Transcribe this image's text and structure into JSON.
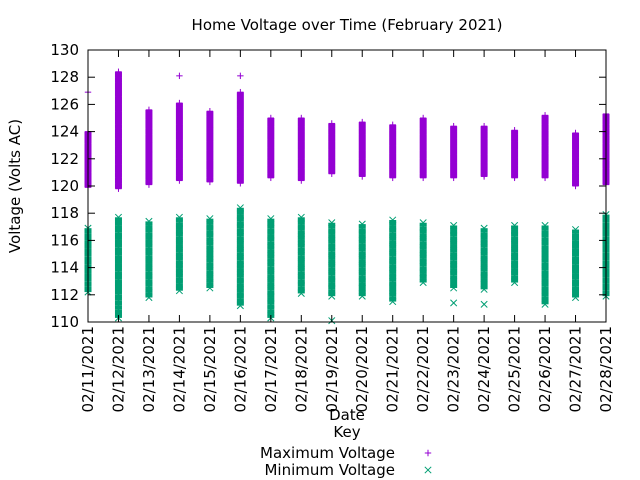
{
  "chart_data": {
    "type": "scatter",
    "title": "Home Voltage over Time (February 2021)",
    "xlabel": "Date",
    "ylabel": "Voltage (Volts AC)",
    "ylim": [
      110,
      130
    ],
    "yticks": [
      110,
      112,
      114,
      116,
      118,
      120,
      122,
      124,
      126,
      128,
      130
    ],
    "x": [
      "02/11/2021",
      "02/12/2021",
      "02/13/2021",
      "02/14/2021",
      "02/15/2021",
      "02/16/2021",
      "02/17/2021",
      "02/18/2021",
      "02/19/2021",
      "02/20/2021",
      "02/21/2021",
      "02/22/2021",
      "02/23/2021",
      "02/24/2021",
      "02/25/2021",
      "02/26/2021",
      "02/27/2021",
      "02/28/2021"
    ],
    "legend_title": "Key",
    "legend_position": "bottom-center",
    "grid": false,
    "series": [
      {
        "name": "Maximum Voltage",
        "marker": "plus",
        "color": "#9400d3",
        "values": [
          {
            "x": "02/11/2021",
            "y": [
              126.9,
              124.0,
              123.1,
              122.5,
              121.8,
              121.0,
              120.4,
              119.9
            ]
          },
          {
            "x": "02/12/2021",
            "y": [
              128.4,
              128.0,
              127.6,
              127.1,
              126.6,
              126.0,
              125.5,
              125.0,
              124.5,
              124.2,
              123.9,
              123.5,
              122.9,
              122.3,
              121.6,
              121.0,
              120.6,
              120.2,
              119.8
            ]
          },
          {
            "x": "02/13/2021",
            "y": [
              125.6,
              124.9,
              124.2,
              123.8,
              123.2,
              122.5,
              121.8,
              121.0,
              120.5,
              120.1
            ]
          },
          {
            "x": "02/14/2021",
            "y": [
              128.1,
              126.1,
              125.8,
              125.0,
              124.5,
              124.0,
              123.4,
              122.7,
              122.0,
              121.4,
              120.8,
              120.4
            ]
          },
          {
            "x": "02/15/2021",
            "y": [
              125.5,
              125.1,
              124.3,
              123.9,
              123.3,
              122.6,
              121.9,
              121.2,
              120.6,
              120.3
            ]
          },
          {
            "x": "02/16/2021",
            "y": [
              128.1,
              126.9,
              126.3,
              126.0,
              125.6,
              125.1,
              124.7,
              124.2,
              123.6,
              122.9,
              122.2,
              121.5,
              120.9,
              120.4,
              120.2
            ]
          },
          {
            "x": "02/17/2021",
            "y": [
              125.0,
              124.4,
              123.9,
              123.4,
              122.8,
              122.1,
              121.5,
              120.9,
              120.6
            ]
          },
          {
            "x": "02/18/2021",
            "y": [
              125.0,
              124.4,
              124.0,
              123.3,
              122.7,
              122.0,
              121.3,
              120.8,
              120.4
            ]
          },
          {
            "x": "02/19/2021",
            "y": [
              124.6,
              124.2,
              123.8,
              123.3,
              122.7,
              122.1,
              121.5,
              121.1,
              120.9
            ]
          },
          {
            "x": "02/20/2021",
            "y": [
              124.7,
              124.2,
              123.8,
              123.2,
              122.6,
              122.0,
              121.4,
              120.9,
              120.7
            ]
          },
          {
            "x": "02/21/2021",
            "y": [
              124.5,
              124.1,
              123.6,
              123.0,
              122.4,
              121.8,
              121.2,
              120.8,
              120.6
            ]
          },
          {
            "x": "02/22/2021",
            "y": [
              125.0,
              124.2,
              123.8,
              123.2,
              122.6,
              122.0,
              121.4,
              120.9,
              120.6
            ]
          },
          {
            "x": "02/23/2021",
            "y": [
              124.4,
              124.0,
              123.5,
              122.9,
              122.3,
              121.7,
              121.1,
              120.8,
              120.6
            ]
          },
          {
            "x": "02/24/2021",
            "y": [
              124.4,
              124.0,
              123.5,
              122.9,
              122.3,
              121.7,
              121.1,
              120.8,
              120.7
            ]
          },
          {
            "x": "02/25/2021",
            "y": [
              124.1,
              123.8,
              123.3,
              122.7,
              122.1,
              121.5,
              121.0,
              120.7,
              120.6
            ]
          },
          {
            "x": "02/26/2021",
            "y": [
              125.2,
              124.5,
              124.1,
              123.6,
              123.0,
              122.4,
              121.8,
              121.2,
              120.7,
              120.6
            ]
          },
          {
            "x": "02/27/2021",
            "y": [
              123.9,
              123.6,
              123.2,
              122.7,
              122.1,
              121.5,
              120.9,
              120.4,
              120.0
            ]
          },
          {
            "x": "02/28/2021",
            "y": [
              125.3,
              124.5,
              124.2,
              123.7,
              123.1,
              122.5,
              121.9,
              121.3,
              120.7,
              120.1
            ]
          }
        ]
      },
      {
        "name": "Minimum Voltage",
        "marker": "cross",
        "color": "#009e73",
        "values": [
          {
            "x": "02/11/2021",
            "y": [
              116.9,
              116.5,
              116.0,
              115.4,
              114.8,
              114.2,
              113.6,
              113.0,
              112.6,
              112.2
            ]
          },
          {
            "x": "02/12/2021",
            "y": [
              117.7,
              117.1,
              116.6,
              116.1,
              115.5,
              114.9,
              114.3,
              113.7,
              113.1,
              112.5,
              112.0,
              111.6,
              111.2,
              110.9,
              110.3
            ]
          },
          {
            "x": "02/13/2021",
            "y": [
              117.4,
              117.1,
              116.6,
              116.1,
              115.5,
              114.9,
              114.3,
              113.7,
              113.1,
              112.6,
              112.2,
              111.8
            ]
          },
          {
            "x": "02/14/2021",
            "y": [
              117.7,
              117.3,
              116.8,
              116.3,
              115.7,
              115.1,
              114.5,
              113.9,
              113.3,
              112.8,
              112.3
            ]
          },
          {
            "x": "02/15/2021",
            "y": [
              117.6,
              117.2,
              116.7,
              116.2,
              115.6,
              115.0,
              114.4,
              113.8,
              113.2,
              112.9,
              112.5
            ]
          },
          {
            "x": "02/16/2021",
            "y": [
              118.4,
              117.9,
              117.4,
              116.9,
              116.3,
              115.7,
              115.1,
              114.5,
              113.9,
              113.3,
              112.8,
              112.2,
              111.7,
              111.2
            ]
          },
          {
            "x": "02/17/2021",
            "y": [
              117.6,
              116.9,
              116.4,
              115.9,
              115.3,
              114.7,
              114.1,
              113.5,
              112.9,
              112.3,
              111.8,
              111.3,
              110.9,
              110.3
            ]
          },
          {
            "x": "02/18/2021",
            "y": [
              117.7,
              117.2,
              116.7,
              116.1,
              115.5,
              114.9,
              114.3,
              113.7,
              113.1,
              112.6,
              112.1
            ]
          },
          {
            "x": "02/19/2021",
            "y": [
              117.3,
              116.9,
              116.4,
              115.8,
              115.2,
              114.6,
              114.0,
              113.4,
              112.9,
              112.4,
              111.9,
              110.1
            ]
          },
          {
            "x": "02/20/2021",
            "y": [
              117.2,
              116.9,
              116.4,
              115.8,
              115.2,
              114.6,
              114.0,
              113.4,
              112.9,
              112.5,
              111.9
            ]
          },
          {
            "x": "02/21/2021",
            "y": [
              117.5,
              117.1,
              116.6,
              116.0,
              115.4,
              114.8,
              114.2,
              113.6,
              113.0,
              112.5,
              111.9,
              111.5
            ]
          },
          {
            "x": "02/22/2021",
            "y": [
              117.3,
              117.0,
              116.5,
              115.9,
              115.3,
              114.7,
              114.1,
              113.6,
              113.2,
              112.9
            ]
          },
          {
            "x": "02/23/2021",
            "y": [
              117.1,
              116.8,
              116.3,
              115.7,
              115.1,
              114.5,
              113.9,
              113.4,
              112.5,
              111.4
            ]
          },
          {
            "x": "02/24/2021",
            "y": [
              116.9,
              116.6,
              116.1,
              115.5,
              114.9,
              114.3,
              113.7,
              113.2,
              112.4,
              111.3
            ]
          },
          {
            "x": "02/25/2021",
            "y": [
              117.1,
              116.8,
              116.3,
              115.7,
              115.1,
              114.5,
              113.9,
              113.4,
              112.9
            ]
          },
          {
            "x": "02/26/2021",
            "y": [
              117.1,
              116.7,
              116.2,
              115.6,
              115.0,
              114.4,
              113.8,
              113.2,
              112.6,
              111.9,
              111.3
            ]
          },
          {
            "x": "02/27/2021",
            "y": [
              116.8,
              116.5,
              116.0,
              115.4,
              114.8,
              114.2,
              113.6,
              113.1,
              112.6,
              111.8
            ]
          },
          {
            "x": "02/28/2021",
            "y": [
              117.9,
              117.3,
              116.8,
              116.3,
              115.7,
              115.1,
              114.5,
              113.9,
              113.3,
              112.8,
              112.3,
              111.9
            ]
          }
        ]
      }
    ]
  }
}
